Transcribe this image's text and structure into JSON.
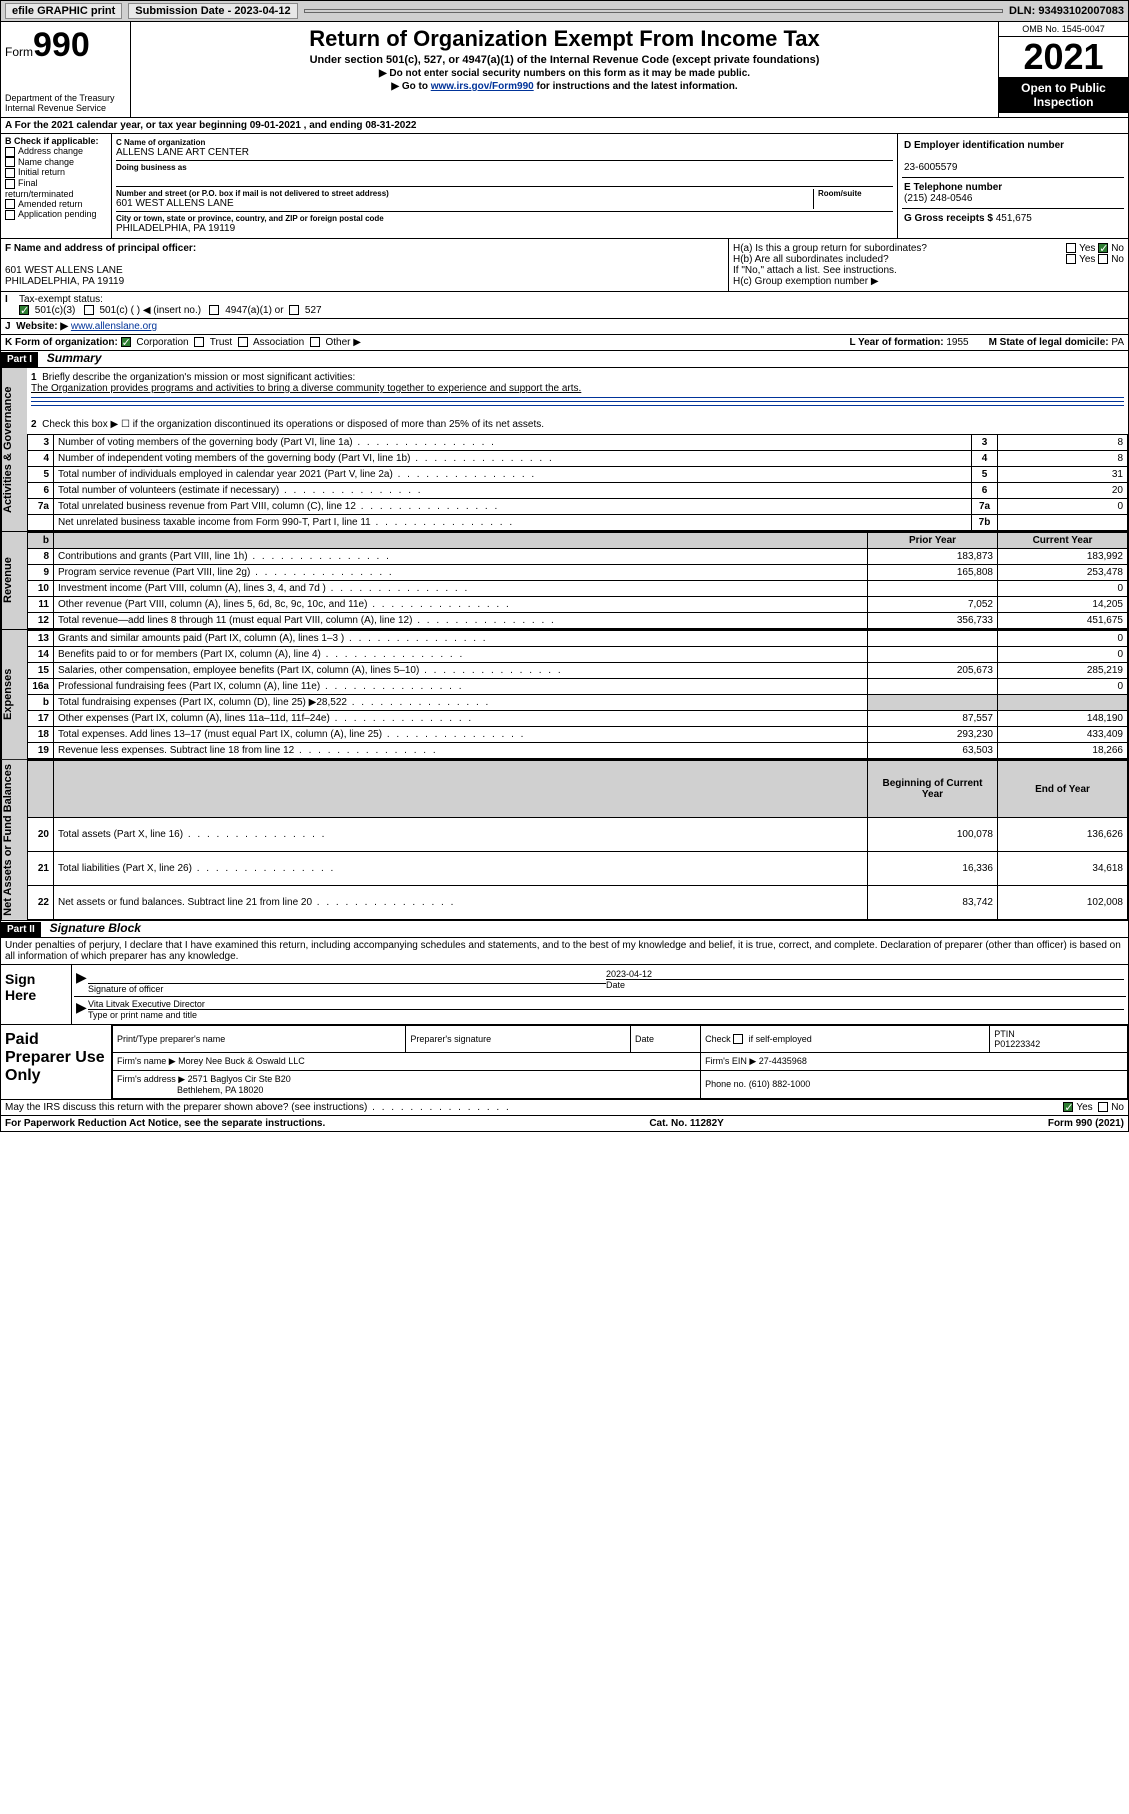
{
  "topbar": {
    "efile": "efile GRAPHIC print",
    "sub_label": "Submission Date - 2023-04-12",
    "dln": "DLN: 93493102007083"
  },
  "header": {
    "form_small": "Form",
    "form_big": "990",
    "dept": "Department of the Treasury",
    "irs": "Internal Revenue Service",
    "title": "Return of Organization Exempt From Income Tax",
    "sub1": "Under section 501(c), 527, or 4947(a)(1) of the Internal Revenue Code (except private foundations)",
    "sub2": "▶ Do not enter social security numbers on this form as it may be made public.",
    "sub3_pre": "▶ Go to ",
    "sub3_link": "www.irs.gov/Form990",
    "sub3_post": " for instructions and the latest information.",
    "omb": "OMB No. 1545-0047",
    "year": "2021",
    "open": "Open to Public Inspection"
  },
  "periodA": "A For the 2021 calendar year, or tax year beginning 09-01-2021   , and ending 08-31-2022",
  "sectionB": {
    "hdr": "B Check if applicable:",
    "opts": [
      "Address change",
      "Name change",
      "Initial return",
      "Final return/terminated",
      "Amended return",
      "Application pending"
    ]
  },
  "sectionC": {
    "name_lbl": "C Name of organization",
    "name": "ALLENS LANE ART CENTER",
    "dba_lbl": "Doing business as",
    "addr_lbl": "Number and street (or P.O. box if mail is not delivered to street address)",
    "room_lbl": "Room/suite",
    "addr": "601 WEST ALLENS LANE",
    "city_lbl": "City or town, state or province, country, and ZIP or foreign postal code",
    "city": "PHILADELPHIA, PA  19119"
  },
  "sectionD": {
    "lbl": "D Employer identification number",
    "val": "23-6005579"
  },
  "sectionE": {
    "lbl": "E Telephone number",
    "val": "(215) 248-0546"
  },
  "sectionG": {
    "lbl": "G Gross receipts $",
    "val": "451,675"
  },
  "sectionF": {
    "lbl": "F Name and address of principal officer:",
    "addr1": "601 WEST ALLENS LANE",
    "addr2": "PHILADELPHIA, PA  19119"
  },
  "sectionH": {
    "a": "H(a)  Is this a group return for subordinates?",
    "b": "H(b)  Are all subordinates included?",
    "bnote": "If \"No,\" attach a list. See instructions.",
    "c": "H(c)  Group exemption number ▶"
  },
  "sectionI": {
    "lbl": "Tax-exempt status:",
    "opt1": "501(c)(3)",
    "opt2": "501(c) (  ) ◀ (insert no.)",
    "opt3": "4947(a)(1) or",
    "opt4": "527"
  },
  "sectionJ": {
    "lbl": "Website: ▶",
    "val": "www.allenslane.org"
  },
  "sectionK": {
    "lbl": "K Form of organization:",
    "opts": [
      "Corporation",
      "Trust",
      "Association",
      "Other ▶"
    ]
  },
  "sectionL": {
    "lbl": "L Year of formation:",
    "val": "1955"
  },
  "sectionM": {
    "lbl": "M State of legal domicile:",
    "val": "PA"
  },
  "part1": {
    "bar": "Part I",
    "title": "Summary",
    "q1": "Briefly describe the organization's mission or most significant activities:",
    "a1": "The Organization provides programs and activities to bring a diverse community together to experience and support the arts.",
    "q2": "Check this box ▶ ☐  if the organization discontinued its operations or disposed of more than 25% of its net assets.",
    "sidelabels": {
      "gov": "Activities & Governance",
      "rev": "Revenue",
      "exp": "Expenses",
      "net": "Net Assets or Fund Balances"
    },
    "gov_rows": [
      {
        "n": "3",
        "d": "Number of voting members of the governing body (Part VI, line 1a)",
        "b": "3",
        "v": "8"
      },
      {
        "n": "4",
        "d": "Number of independent voting members of the governing body (Part VI, line 1b)",
        "b": "4",
        "v": "8"
      },
      {
        "n": "5",
        "d": "Total number of individuals employed in calendar year 2021 (Part V, line 2a)",
        "b": "5",
        "v": "31"
      },
      {
        "n": "6",
        "d": "Total number of volunteers (estimate if necessary)",
        "b": "6",
        "v": "20"
      },
      {
        "n": "7a",
        "d": "Total unrelated business revenue from Part VIII, column (C), line 12",
        "b": "7a",
        "v": "0"
      },
      {
        "n": "",
        "d": "Net unrelated business taxable income from Form 990-T, Part I, line 11",
        "b": "7b",
        "v": ""
      }
    ],
    "col_hdr": {
      "n": "b",
      "prior": "Prior Year",
      "curr": "Current Year"
    },
    "rev_rows": [
      {
        "n": "8",
        "d": "Contributions and grants (Part VIII, line 1h)",
        "p": "183,873",
        "c": "183,992"
      },
      {
        "n": "9",
        "d": "Program service revenue (Part VIII, line 2g)",
        "p": "165,808",
        "c": "253,478"
      },
      {
        "n": "10",
        "d": "Investment income (Part VIII, column (A), lines 3, 4, and 7d )",
        "p": "",
        "c": "0"
      },
      {
        "n": "11",
        "d": "Other revenue (Part VIII, column (A), lines 5, 6d, 8c, 9c, 10c, and 11e)",
        "p": "7,052",
        "c": "14,205"
      },
      {
        "n": "12",
        "d": "Total revenue—add lines 8 through 11 (must equal Part VIII, column (A), line 12)",
        "p": "356,733",
        "c": "451,675"
      }
    ],
    "exp_rows": [
      {
        "n": "13",
        "d": "Grants and similar amounts paid (Part IX, column (A), lines 1–3 )",
        "p": "",
        "c": "0"
      },
      {
        "n": "14",
        "d": "Benefits paid to or for members (Part IX, column (A), line 4)",
        "p": "",
        "c": "0"
      },
      {
        "n": "15",
        "d": "Salaries, other compensation, employee benefits (Part IX, column (A), lines 5–10)",
        "p": "205,673",
        "c": "285,219"
      },
      {
        "n": "16a",
        "d": "Professional fundraising fees (Part IX, column (A), line 11e)",
        "p": "",
        "c": "0"
      },
      {
        "n": "b",
        "d": "Total fundraising expenses (Part IX, column (D), line 25) ▶28,522",
        "p": "GRAY",
        "c": "GRAY"
      },
      {
        "n": "17",
        "d": "Other expenses (Part IX, column (A), lines 11a–11d, 11f–24e)",
        "p": "87,557",
        "c": "148,190"
      },
      {
        "n": "18",
        "d": "Total expenses. Add lines 13–17 (must equal Part IX, column (A), line 25)",
        "p": "293,230",
        "c": "433,409"
      },
      {
        "n": "19",
        "d": "Revenue less expenses. Subtract line 18 from line 12",
        "p": "63,503",
        "c": "18,266"
      }
    ],
    "net_hdr": {
      "p": "Beginning of Current Year",
      "c": "End of Year"
    },
    "net_rows": [
      {
        "n": "20",
        "d": "Total assets (Part X, line 16)",
        "p": "100,078",
        "c": "136,626"
      },
      {
        "n": "21",
        "d": "Total liabilities (Part X, line 26)",
        "p": "16,336",
        "c": "34,618"
      },
      {
        "n": "22",
        "d": "Net assets or fund balances. Subtract line 21 from line 20",
        "p": "83,742",
        "c": "102,008"
      }
    ]
  },
  "part2": {
    "bar": "Part II",
    "title": "Signature Block",
    "decl": "Under penalties of perjury, I declare that I have examined this return, including accompanying schedules and statements, and to the best of my knowledge and belief, it is true, correct, and complete. Declaration of preparer (other than officer) is based on all information of which preparer has any knowledge."
  },
  "sign": {
    "here": "Sign Here",
    "sig_lbl": "Signature of officer",
    "date_lbl": "Date",
    "date": "2023-04-12",
    "name": "Vita Litvak  Executive Director",
    "name_lbl": "Type or print name and title"
  },
  "prep": {
    "here": "Paid Preparer Use Only",
    "h1": "Print/Type preparer's name",
    "h2": "Preparer's signature",
    "h3": "Date",
    "h4_pre": "Check",
    "h4_post": "if self-employed",
    "h5": "PTIN",
    "ptin": "P01223342",
    "firm_lbl": "Firm's name    ▶",
    "firm": "Morey Nee Buck & Oswald LLC",
    "ein_lbl": "Firm's EIN ▶",
    "ein": "27-4435968",
    "addr_lbl": "Firm's address ▶",
    "addr1": "2571 Baglyos Cir Ste B20",
    "addr2": "Bethlehem, PA  18020",
    "phone_lbl": "Phone no.",
    "phone": "(610) 882-1000"
  },
  "discuss": "May the IRS discuss this return with the preparer shown above? (see instructions)",
  "footer": {
    "left": "For Paperwork Reduction Act Notice, see the separate instructions.",
    "mid": "Cat. No. 11282Y",
    "right": "Form 990 (2021)"
  },
  "yn": {
    "yes": "Yes",
    "no": "No"
  }
}
